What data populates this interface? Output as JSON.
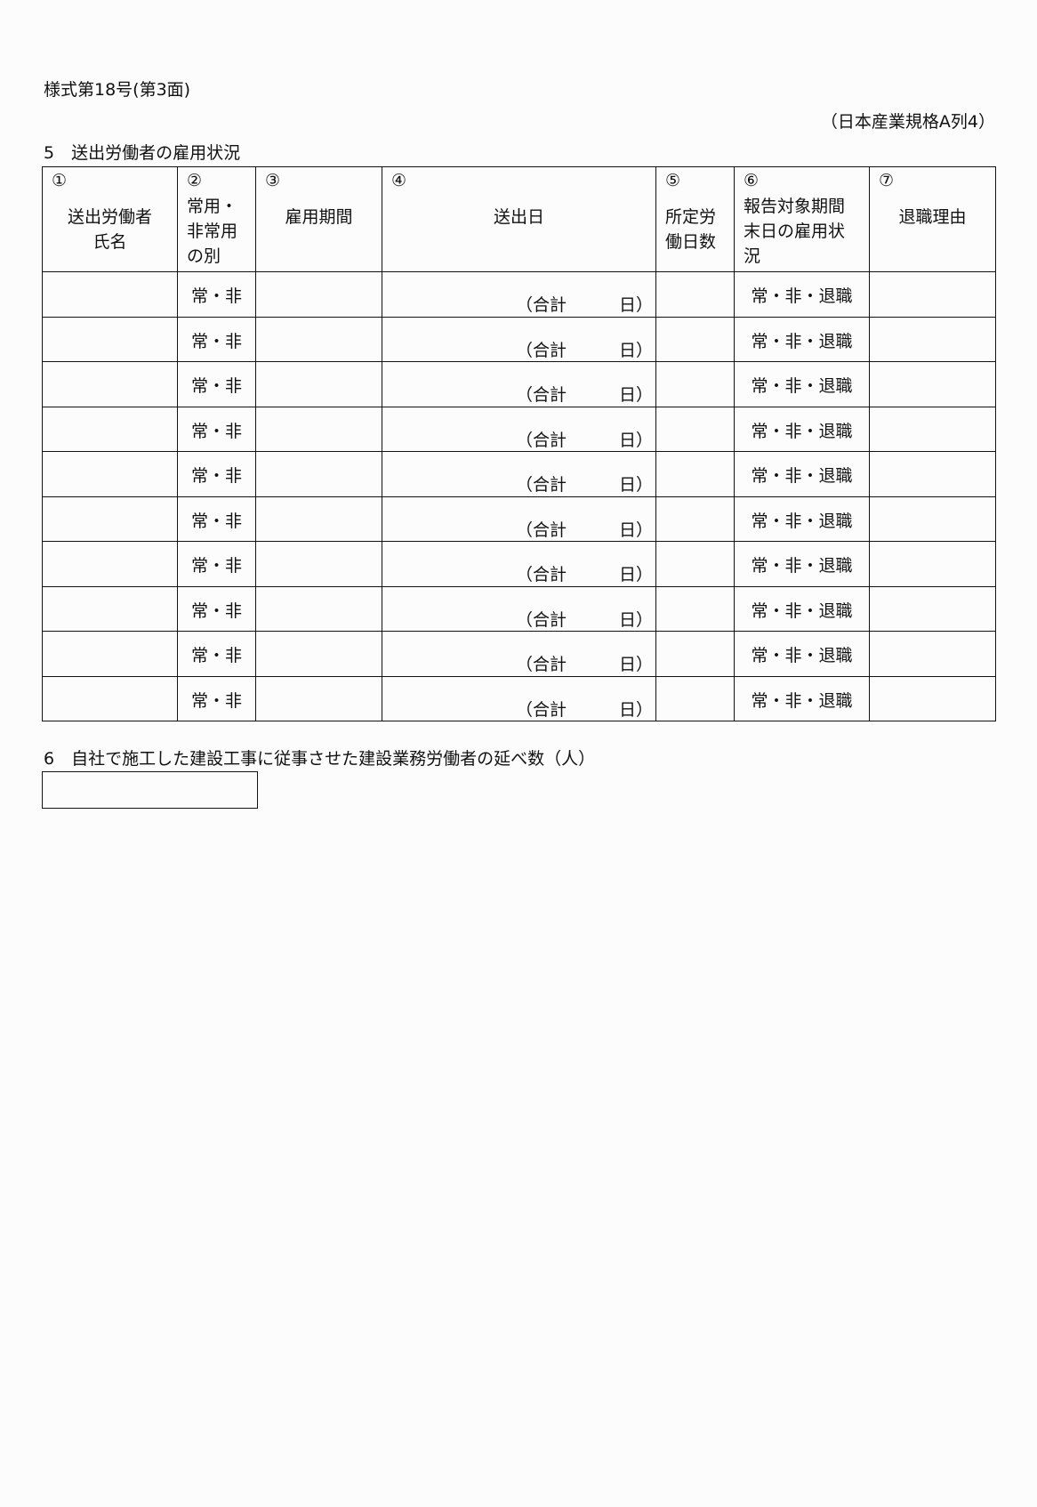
{
  "form_number": "様式第18号(第3面)",
  "paper_size": "（日本産業規格A列4）",
  "section5": {
    "title": "5　送出労働者の雇用状況",
    "headers": [
      {
        "num": "①",
        "label": "送出労働者\n氏名"
      },
      {
        "num": "②",
        "label": "常用・\n非常用\nの別"
      },
      {
        "num": "③",
        "label": "雇用期間"
      },
      {
        "num": "④",
        "label": "送出日"
      },
      {
        "num": "⑤",
        "label": "所定労\n働日数"
      },
      {
        "num": "⑥",
        "label": "報告対象期間\n末日の雇用状\n況"
      },
      {
        "num": "⑦",
        "label": "退職理由"
      }
    ],
    "row_template": {
      "regular_choice": "常・非",
      "total_prefix": "（合計",
      "total_suffix": "日）",
      "status_choice": "常・非・退職"
    },
    "row_count": 10
  },
  "section6": {
    "title": "6　自社で施工した建設工事に従事させた建設業務労働者の延べ数（人）",
    "value": ""
  }
}
